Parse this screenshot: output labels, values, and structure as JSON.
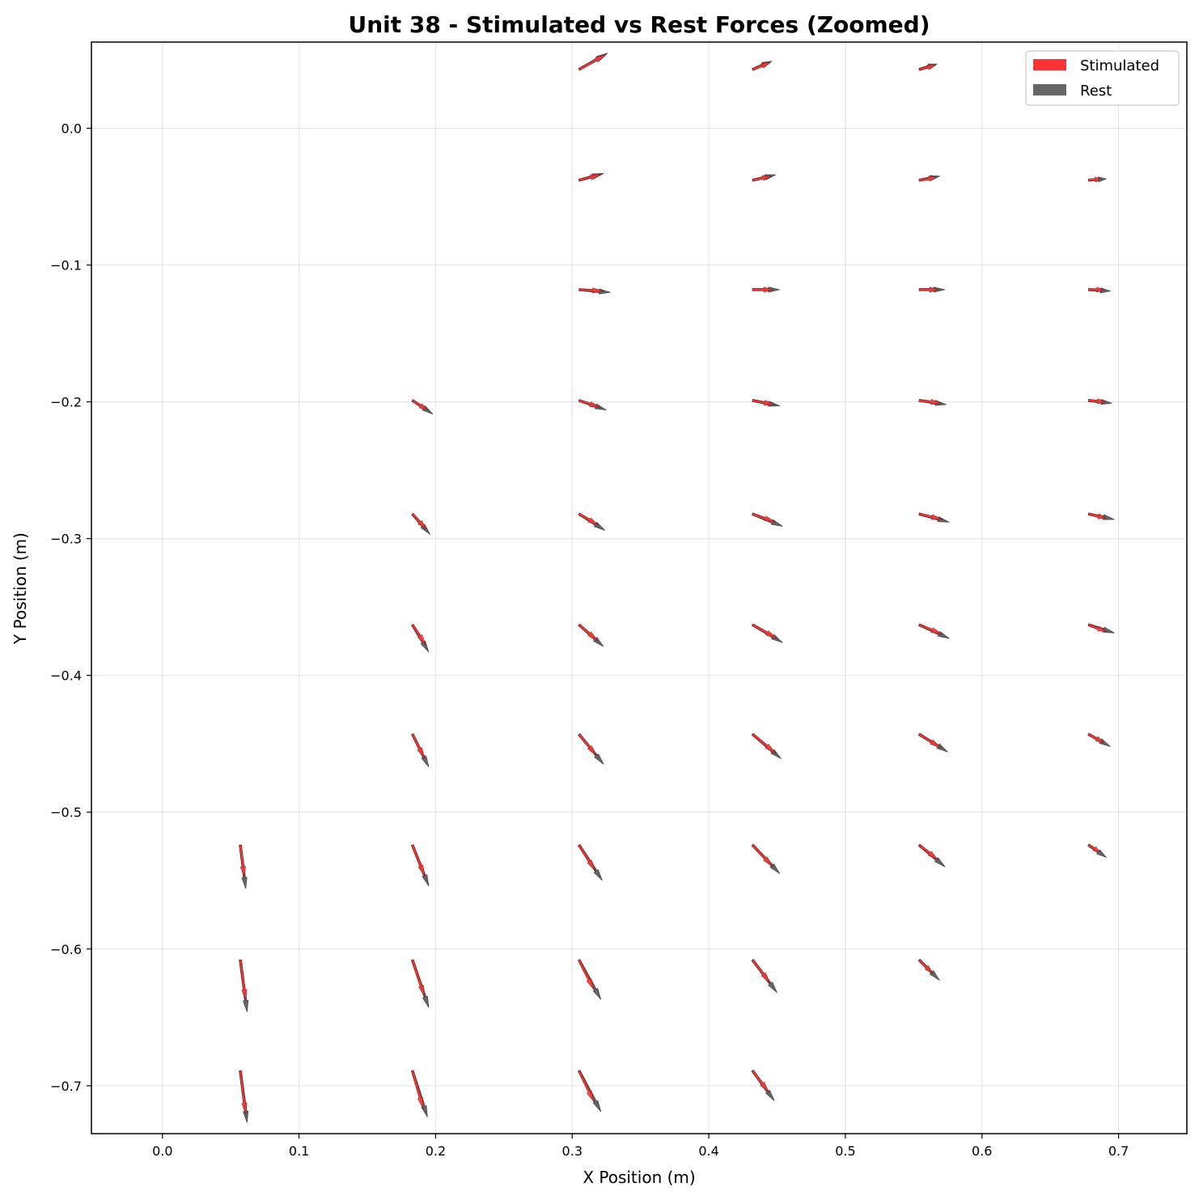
{
  "chart_data": {
    "type": "quiver",
    "title": "Unit 38 - Stimulated vs Rest Forces (Zoomed)",
    "xlabel": "X Position (m)",
    "ylabel": "Y Position (m)",
    "xlim": [
      -0.052,
      0.75
    ],
    "ylim": [
      -0.735,
      0.063
    ],
    "xticks": [
      0.0,
      0.1,
      0.2,
      0.3,
      0.4,
      0.5,
      0.6,
      0.7
    ],
    "xtick_labels": [
      "0.0",
      "0.1",
      "0.2",
      "0.3",
      "0.4",
      "0.5",
      "0.6",
      "0.7"
    ],
    "yticks": [
      0.0,
      -0.1,
      -0.2,
      -0.3,
      -0.4,
      -0.5,
      -0.6,
      -0.7
    ],
    "ytick_labels": [
      "0.0",
      "−0.1",
      "−0.2",
      "−0.3",
      "−0.4",
      "−0.5",
      "−0.6",
      "−0.7"
    ],
    "grid": true,
    "legend": {
      "position": "top-right",
      "entries": [
        "Stimulated",
        "Rest"
      ]
    },
    "colors": {
      "stimulated": "#ff3333",
      "rest": "#666666",
      "shaft": "#7a0f0f"
    },
    "series": [
      {
        "name": "Stimulated",
        "vectors": [
          {
            "x": 0.305,
            "y": 0.043,
            "u": 0.02,
            "v": 0.011
          },
          {
            "x": 0.432,
            "y": 0.043,
            "u": 0.013,
            "v": 0.005
          },
          {
            "x": 0.554,
            "y": 0.043,
            "u": 0.012,
            "v": 0.003
          },
          {
            "x": 0.305,
            "y": -0.038,
            "u": 0.016,
            "v": 0.004
          },
          {
            "x": 0.432,
            "y": -0.038,
            "u": 0.014,
            "v": 0.003
          },
          {
            "x": 0.554,
            "y": -0.038,
            "u": 0.013,
            "v": 0.002
          },
          {
            "x": 0.678,
            "y": -0.038,
            "u": 0.009,
            "v": 0.001
          },
          {
            "x": 0.305,
            "y": -0.118,
            "u": 0.018,
            "v": -0.001
          },
          {
            "x": 0.432,
            "y": -0.118,
            "u": 0.015,
            "v": 0.0
          },
          {
            "x": 0.554,
            "y": -0.118,
            "u": 0.014,
            "v": 0.0
          },
          {
            "x": 0.678,
            "y": -0.118,
            "u": 0.011,
            "v": 0.0
          },
          {
            "x": 0.183,
            "y": -0.199,
            "u": 0.011,
            "v": -0.007
          },
          {
            "x": 0.305,
            "y": -0.199,
            "u": 0.015,
            "v": -0.005
          },
          {
            "x": 0.432,
            "y": -0.199,
            "u": 0.016,
            "v": -0.003
          },
          {
            "x": 0.554,
            "y": -0.199,
            "u": 0.016,
            "v": -0.002
          },
          {
            "x": 0.678,
            "y": -0.199,
            "u": 0.012,
            "v": -0.001
          },
          {
            "x": 0.183,
            "y": -0.282,
            "u": 0.01,
            "v": -0.011
          },
          {
            "x": 0.305,
            "y": -0.282,
            "u": 0.014,
            "v": -0.008
          },
          {
            "x": 0.432,
            "y": -0.282,
            "u": 0.017,
            "v": -0.006
          },
          {
            "x": 0.554,
            "y": -0.282,
            "u": 0.017,
            "v": -0.004
          },
          {
            "x": 0.678,
            "y": -0.282,
            "u": 0.013,
            "v": -0.003
          },
          {
            "x": 0.183,
            "y": -0.363,
            "u": 0.01,
            "v": -0.015
          },
          {
            "x": 0.305,
            "y": -0.363,
            "u": 0.014,
            "v": -0.012
          },
          {
            "x": 0.432,
            "y": -0.363,
            "u": 0.018,
            "v": -0.01
          },
          {
            "x": 0.554,
            "y": -0.363,
            "u": 0.017,
            "v": -0.007
          },
          {
            "x": 0.678,
            "y": -0.363,
            "u": 0.013,
            "v": -0.005
          },
          {
            "x": 0.183,
            "y": -0.443,
            "u": 0.009,
            "v": -0.018
          },
          {
            "x": 0.305,
            "y": -0.443,
            "u": 0.013,
            "v": -0.016
          },
          {
            "x": 0.432,
            "y": -0.443,
            "u": 0.017,
            "v": -0.014
          },
          {
            "x": 0.554,
            "y": -0.443,
            "u": 0.016,
            "v": -0.01
          },
          {
            "x": 0.678,
            "y": -0.443,
            "u": 0.011,
            "v": -0.006
          },
          {
            "x": 0.057,
            "y": -0.524,
            "u": 0.003,
            "v": -0.024
          },
          {
            "x": 0.183,
            "y": -0.524,
            "u": 0.009,
            "v": -0.023
          },
          {
            "x": 0.305,
            "y": -0.524,
            "u": 0.012,
            "v": -0.019
          },
          {
            "x": 0.432,
            "y": -0.524,
            "u": 0.015,
            "v": -0.016
          },
          {
            "x": 0.554,
            "y": -0.524,
            "u": 0.014,
            "v": -0.011
          },
          {
            "x": 0.678,
            "y": -0.524,
            "u": 0.008,
            "v": -0.005
          },
          {
            "x": 0.057,
            "y": -0.608,
            "u": 0.004,
            "v": -0.03
          },
          {
            "x": 0.183,
            "y": -0.608,
            "u": 0.009,
            "v": -0.027
          },
          {
            "x": 0.305,
            "y": -0.608,
            "u": 0.011,
            "v": -0.022
          },
          {
            "x": 0.432,
            "y": -0.608,
            "u": 0.013,
            "v": -0.017
          },
          {
            "x": 0.554,
            "y": -0.608,
            "u": 0.01,
            "v": -0.01
          },
          {
            "x": 0.057,
            "y": -0.689,
            "u": 0.004,
            "v": -0.032
          },
          {
            "x": 0.183,
            "y": -0.689,
            "u": 0.008,
            "v": -0.028
          },
          {
            "x": 0.305,
            "y": -0.689,
            "u": 0.011,
            "v": -0.023
          },
          {
            "x": 0.432,
            "y": -0.689,
            "u": 0.012,
            "v": -0.016
          }
        ]
      },
      {
        "name": "Rest",
        "vectors": [
          {
            "x": 0.305,
            "y": 0.043,
            "u": 0.021,
            "v": 0.012
          },
          {
            "x": 0.432,
            "y": 0.043,
            "u": 0.014,
            "v": 0.006
          },
          {
            "x": 0.554,
            "y": 0.043,
            "u": 0.013,
            "v": 0.004
          },
          {
            "x": 0.305,
            "y": -0.038,
            "u": 0.018,
            "v": 0.005
          },
          {
            "x": 0.432,
            "y": -0.038,
            "u": 0.017,
            "v": 0.004
          },
          {
            "x": 0.554,
            "y": -0.038,
            "u": 0.015,
            "v": 0.003
          },
          {
            "x": 0.678,
            "y": -0.038,
            "u": 0.013,
            "v": 0.001
          },
          {
            "x": 0.305,
            "y": -0.118,
            "u": 0.023,
            "v": -0.002
          },
          {
            "x": 0.432,
            "y": -0.118,
            "u": 0.02,
            "v": 0.0
          },
          {
            "x": 0.554,
            "y": -0.118,
            "u": 0.019,
            "v": 0.0
          },
          {
            "x": 0.678,
            "y": -0.118,
            "u": 0.016,
            "v": -0.001
          },
          {
            "x": 0.183,
            "y": -0.199,
            "u": 0.015,
            "v": -0.01
          },
          {
            "x": 0.305,
            "y": -0.199,
            "u": 0.02,
            "v": -0.007
          },
          {
            "x": 0.432,
            "y": -0.199,
            "u": 0.02,
            "v": -0.004
          },
          {
            "x": 0.554,
            "y": -0.199,
            "u": 0.02,
            "v": -0.003
          },
          {
            "x": 0.678,
            "y": -0.199,
            "u": 0.017,
            "v": -0.002
          },
          {
            "x": 0.183,
            "y": -0.282,
            "u": 0.013,
            "v": -0.015
          },
          {
            "x": 0.305,
            "y": -0.282,
            "u": 0.019,
            "v": -0.012
          },
          {
            "x": 0.432,
            "y": -0.282,
            "u": 0.022,
            "v": -0.009
          },
          {
            "x": 0.554,
            "y": -0.282,
            "u": 0.022,
            "v": -0.006
          },
          {
            "x": 0.678,
            "y": -0.282,
            "u": 0.019,
            "v": -0.004
          },
          {
            "x": 0.183,
            "y": -0.363,
            "u": 0.012,
            "v": -0.02
          },
          {
            "x": 0.305,
            "y": -0.363,
            "u": 0.018,
            "v": -0.016
          },
          {
            "x": 0.432,
            "y": -0.363,
            "u": 0.022,
            "v": -0.013
          },
          {
            "x": 0.554,
            "y": -0.363,
            "u": 0.022,
            "v": -0.01
          },
          {
            "x": 0.678,
            "y": -0.363,
            "u": 0.019,
            "v": -0.006
          },
          {
            "x": 0.183,
            "y": -0.443,
            "u": 0.012,
            "v": -0.024
          },
          {
            "x": 0.305,
            "y": -0.443,
            "u": 0.018,
            "v": -0.022
          },
          {
            "x": 0.432,
            "y": -0.443,
            "u": 0.021,
            "v": -0.018
          },
          {
            "x": 0.554,
            "y": -0.443,
            "u": 0.021,
            "v": -0.013
          },
          {
            "x": 0.678,
            "y": -0.443,
            "u": 0.016,
            "v": -0.009
          },
          {
            "x": 0.057,
            "y": -0.524,
            "u": 0.004,
            "v": -0.032
          },
          {
            "x": 0.183,
            "y": -0.524,
            "u": 0.012,
            "v": -0.03
          },
          {
            "x": 0.305,
            "y": -0.524,
            "u": 0.017,
            "v": -0.026
          },
          {
            "x": 0.432,
            "y": -0.524,
            "u": 0.02,
            "v": -0.021
          },
          {
            "x": 0.554,
            "y": -0.524,
            "u": 0.019,
            "v": -0.016
          },
          {
            "x": 0.678,
            "y": -0.524,
            "u": 0.013,
            "v": -0.009
          },
          {
            "x": 0.057,
            "y": -0.608,
            "u": 0.005,
            "v": -0.038
          },
          {
            "x": 0.183,
            "y": -0.608,
            "u": 0.012,
            "v": -0.035
          },
          {
            "x": 0.305,
            "y": -0.608,
            "u": 0.016,
            "v": -0.029
          },
          {
            "x": 0.432,
            "y": -0.608,
            "u": 0.018,
            "v": -0.024
          },
          {
            "x": 0.554,
            "y": -0.608,
            "u": 0.015,
            "v": -0.015
          },
          {
            "x": 0.057,
            "y": -0.689,
            "u": 0.005,
            "v": -0.038
          },
          {
            "x": 0.183,
            "y": -0.689,
            "u": 0.011,
            "v": -0.034
          },
          {
            "x": 0.305,
            "y": -0.689,
            "u": 0.016,
            "v": -0.03
          },
          {
            "x": 0.432,
            "y": -0.689,
            "u": 0.016,
            "v": -0.022
          }
        ]
      }
    ]
  }
}
